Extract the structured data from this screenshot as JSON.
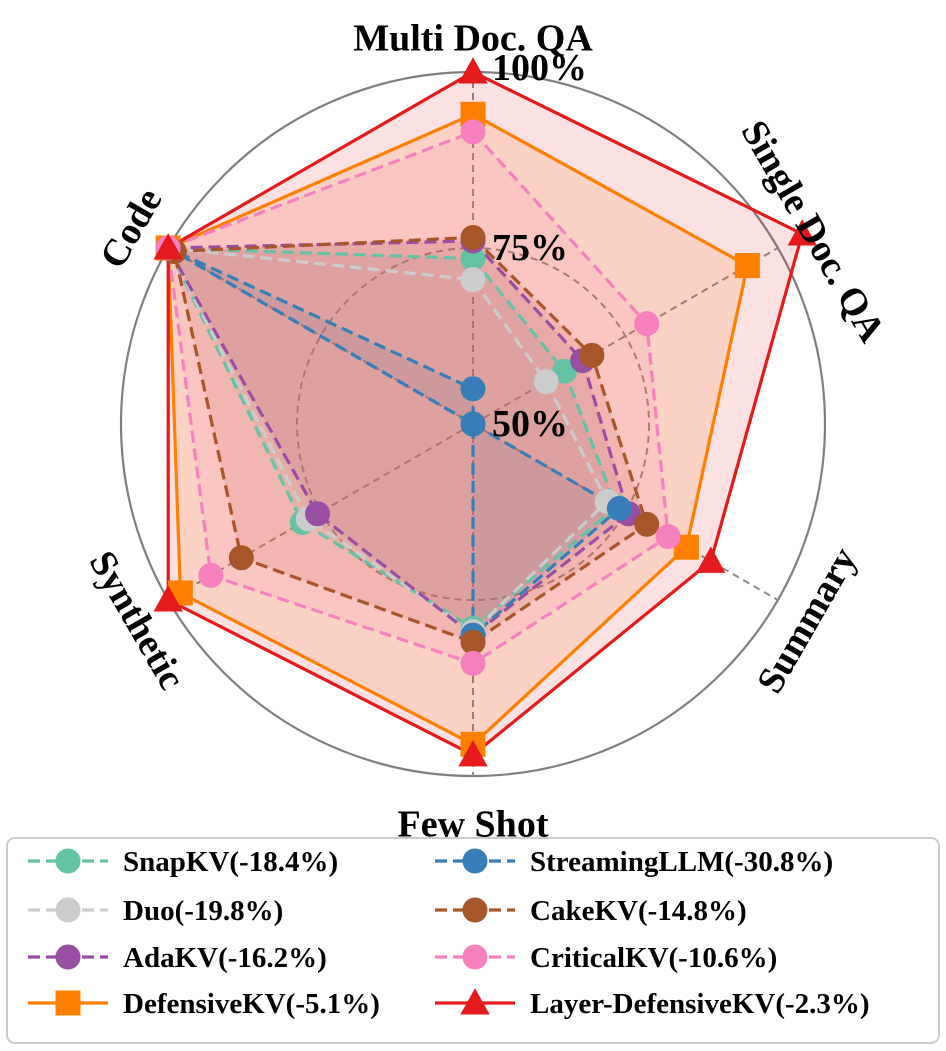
{
  "chart_data": {
    "type": "radar",
    "axes": [
      "Multi Doc. QA",
      "Single Doc. QA",
      "Summary",
      "Few Shot",
      "Synthetic",
      "Code"
    ],
    "ticks": [
      {
        "value": 50,
        "label": "50%"
      },
      {
        "value": 75,
        "label": "75%"
      },
      {
        "value": 100,
        "label": "100%"
      }
    ],
    "rlim": [
      50,
      100
    ],
    "grid": true,
    "legend_position": "bottom",
    "series": [
      {
        "name": "SnapKV(-18.4%)",
        "color": "#66c2a5",
        "linestyle": "dashed",
        "marker": "circle",
        "values": [
          73.5,
          65.0,
          73.5,
          79.0,
          78.0,
          100
        ]
      },
      {
        "name": "Duo(-19.8%)",
        "color": "#cccccc",
        "linestyle": "dashed",
        "marker": "circle",
        "values": [
          70.5,
          62.0,
          72.0,
          79.5,
          77.0,
          100
        ]
      },
      {
        "name": "AdaKV(-16.2%)",
        "color": "#984ea3",
        "linestyle": "dashed",
        "marker": "circle",
        "values": [
          76.0,
          68.0,
          75.5,
          80.0,
          75.5,
          100
        ]
      },
      {
        "name": "DefensiveKV(-5.1%)",
        "color": "#ff7f00",
        "linestyle": "solid",
        "marker": "square",
        "values": [
          94.0,
          95.0,
          85.0,
          95.5,
          98.0,
          100
        ]
      },
      {
        "name": "StreamingLLM(-30.8%)",
        "color": "#377eb8",
        "linestyle": "dashed",
        "marker": "circle",
        "values": [
          55.0,
          50.0,
          74.0,
          80.0,
          50.0,
          100
        ]
      },
      {
        "name": "CakeKV(-14.8%)",
        "color": "#a65628",
        "linestyle": "dashed",
        "marker": "circle",
        "values": [
          76.5,
          69.5,
          78.5,
          81.0,
          88.0,
          99.0
        ]
      },
      {
        "name": "CriticalKV(-10.6%)",
        "color": "#f781bf",
        "linestyle": "dashed",
        "marker": "circle",
        "values": [
          91.5,
          78.5,
          82.0,
          84.0,
          93.0,
          100
        ]
      },
      {
        "name": "Layer-DefensiveKV(-2.3%)",
        "color": "#e41a1c",
        "linestyle": "solid",
        "marker": "triangle",
        "values": [
          100.0,
          104.0,
          89.0,
          97.0,
          100.0,
          100
        ]
      }
    ]
  }
}
